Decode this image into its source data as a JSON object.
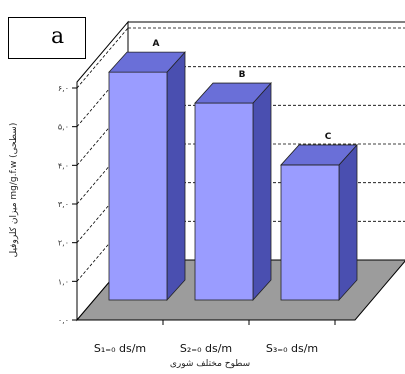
{
  "chart_data": {
    "type": "bar",
    "panel_label": "a",
    "categories": [
      "S₁₌₀ ds/m",
      "S₂₌₀ ds/m",
      "S₃₌₀ ds/m"
    ],
    "values": [
      6.1,
      5.3,
      3.7
    ],
    "group_letters": [
      "A",
      "B",
      "C"
    ],
    "ylabel": "میزان کلروفیل mg/g.f.w (سطحی)",
    "xlabel": "سطوح مختلف شوری",
    "ylim": [
      0,
      6
    ],
    "yticks": [
      "۰,۰",
      "۱,۰",
      "۲,۰",
      "۳,۰",
      "۴,۰",
      "۵,۰",
      "۶,۰"
    ],
    "grid": true,
    "colors": {
      "bar_front": "#9a9cff",
      "bar_side": "#4a4fb0",
      "bar_top": "#6a6fd8",
      "floor": "#9c9c9c",
      "wall": "#ffffff"
    }
  }
}
